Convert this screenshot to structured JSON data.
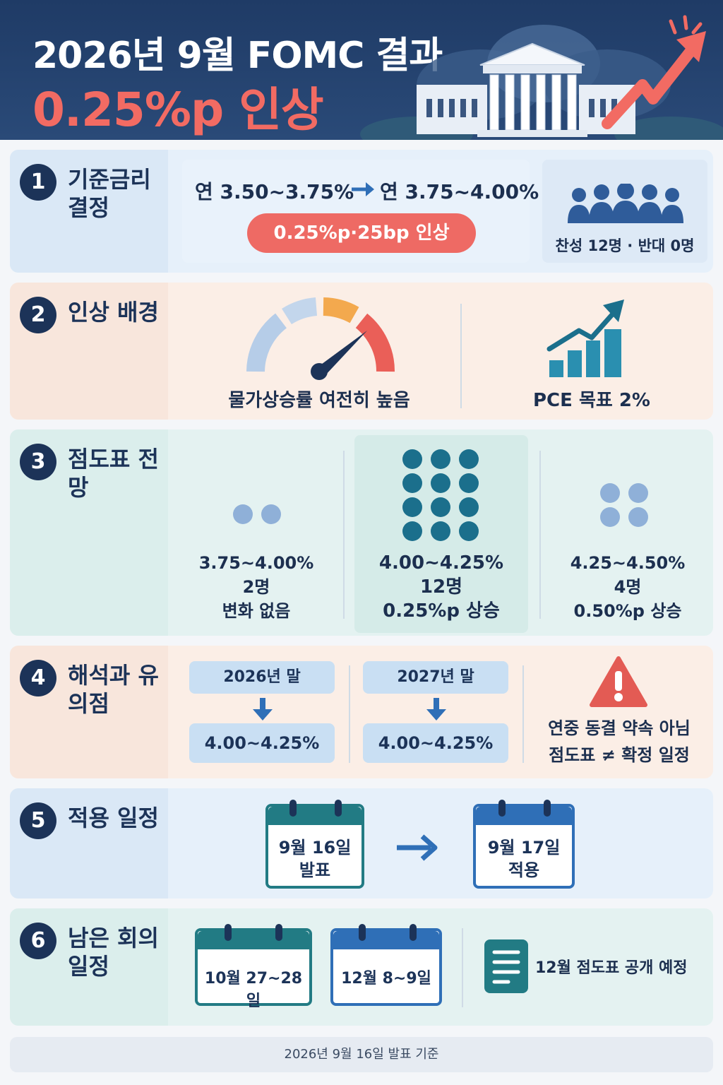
{
  "header": {
    "title": "2026년 9월 FOMC 결과",
    "subtitle": "0.25%p 인상"
  },
  "sections": {
    "s1": {
      "number": "1",
      "title": "기준금리 결정",
      "rate_from": "연 3.50~3.75%",
      "rate_to": "연 3.75~4.00%",
      "hike_pill": "0.25%p·25bp 인상",
      "vote": "찬성 12명 · 반대 0명"
    },
    "s2": {
      "number": "2",
      "title": "인상 배경",
      "inflation_label": "물가상승률 여전히 높음",
      "pce_label": "PCE 목표 2%"
    },
    "s3": {
      "number": "3",
      "title": "점도표 전망",
      "groups": [
        {
          "range": "3.75~4.00%",
          "count": "2명",
          "change": "변화 없음",
          "dots": 2
        },
        {
          "range": "4.00~4.25%",
          "count": "12명",
          "change": "0.25%p 상승",
          "dots": 12
        },
        {
          "range": "4.25~4.50%",
          "count": "4명",
          "change": "0.50%p 상승",
          "dots": 4
        }
      ]
    },
    "s4": {
      "number": "4",
      "title": "해석과 유의점",
      "outlook": [
        {
          "year": "2026년 말",
          "rate": "4.00~4.25%"
        },
        {
          "year": "2027년 말",
          "rate": "4.00~4.25%"
        }
      ],
      "caution_line1": "연중 동결 약속 아님",
      "caution_line2": "점도표 ≠ 확정 일정"
    },
    "s5": {
      "number": "5",
      "title": "적용 일정",
      "announce_date": "9월 16일",
      "announce_label": "발표",
      "apply_date": "9월 17일",
      "apply_label": "적용"
    },
    "s6": {
      "number": "6",
      "title": "남은 회의 일정",
      "meeting1": "10월 27~28일",
      "meeting2": "12월 8~9일",
      "note": "12월 점도표 공개 예정"
    }
  },
  "footer": "2026년 9월 16일 발표 기준",
  "colors": {
    "navy": "#1c3358",
    "red": "#ee6a64",
    "teal": "#1b6f8c",
    "blue": "#2f6fb7"
  }
}
